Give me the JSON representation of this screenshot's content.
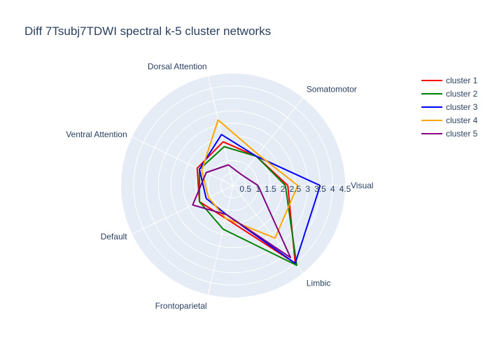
{
  "chart_data": {
    "type": "radar",
    "title": "Diff 7Tsubj7TDWI spectral k-5 cluster networks",
    "axes": [
      "Visual",
      "Somatomotor",
      "Dorsal Attention",
      "Ventral Attention",
      "Default",
      "Frontoparietal",
      "Limbic"
    ],
    "radial_range": [
      0,
      4.5
    ],
    "radial_ticks": [
      0.5,
      1,
      1.5,
      2,
      2.5,
      3,
      3.5,
      4,
      4.5
    ],
    "grid": true,
    "legend_position": "top-right",
    "series": [
      {
        "name": "cluster 1",
        "color": "#ff0000",
        "values": [
          2.2,
          1.5,
          1.8,
          1.6,
          1.5,
          1.35,
          4.0
        ]
      },
      {
        "name": "cluster 2",
        "color": "#008000",
        "values": [
          2.1,
          1.5,
          1.6,
          1.5,
          1.5,
          1.8,
          4.1
        ]
      },
      {
        "name": "cluster 3",
        "color": "#0000ff",
        "values": [
          3.5,
          1.5,
          2.1,
          1.5,
          1.2,
          1.2,
          4.0
        ]
      },
      {
        "name": "cluster 4",
        "color": "#ffa500",
        "values": [
          2.6,
          1.6,
          2.7,
          1.4,
          1.1,
          1.35,
          2.7
        ]
      },
      {
        "name": "cluster 5",
        "color": "#800080",
        "values": [
          1.0,
          0.55,
          0.85,
          1.2,
          1.8,
          1.2,
          3.7
        ]
      }
    ]
  }
}
